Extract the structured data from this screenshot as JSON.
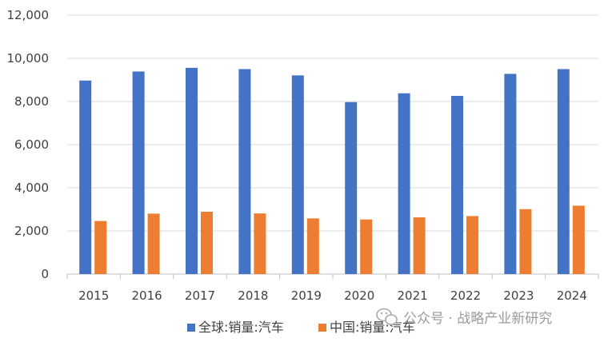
{
  "chart_data": {
    "type": "bar",
    "categories": [
      "2015",
      "2016",
      "2017",
      "2018",
      "2019",
      "2020",
      "2021",
      "2022",
      "2023",
      "2024"
    ],
    "series": [
      {
        "name": "全球:销量:汽车",
        "color": "#4472C4",
        "values": [
          8970,
          9390,
          9560,
          9500,
          9210,
          7970,
          8380,
          8260,
          9280,
          9500
        ]
      },
      {
        "name": "中国:销量:汽车",
        "color": "#ED7D31",
        "values": [
          2460,
          2800,
          2890,
          2810,
          2580,
          2530,
          2630,
          2690,
          3010,
          3170
        ]
      }
    ],
    "y_ticks": [
      "0",
      "2,000",
      "4,000",
      "6,000",
      "8,000",
      "10,000",
      "12,000"
    ],
    "ylim": [
      0,
      12000
    ],
    "grid": true,
    "legend_position": "bottom"
  },
  "watermark": {
    "text": "公众号 · 战略产业新研究",
    "icon": "wechat-icon"
  }
}
